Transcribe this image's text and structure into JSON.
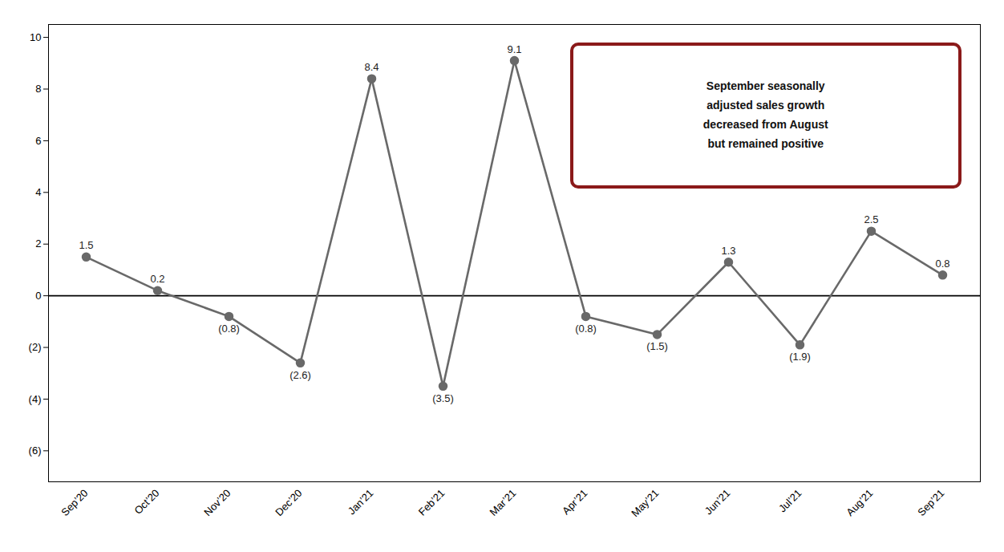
{
  "chart_data": {
    "type": "line",
    "categories": [
      "Sep’20",
      "Oct’20",
      "Nov’20",
      "Dec’20",
      "Jan’21",
      "Feb’21",
      "Mar’21",
      "Apr’21",
      "May’21",
      "Jun’21",
      "Jul’21",
      "Aug’21",
      "Sep’21"
    ],
    "values": [
      1.5,
      0.2,
      -0.8,
      -2.6,
      8.4,
      -3.5,
      9.1,
      -0.8,
      -1.5,
      1.3,
      -1.9,
      2.5,
      0.8
    ],
    "value_labels": [
      "1.5",
      "0.2",
      "(0.8)",
      "(2.6)",
      "8.4",
      "(3.5)",
      "9.1",
      "(0.8)",
      "(1.5)",
      "1.3",
      "(1.9)",
      "2.5",
      "0.8"
    ],
    "color": "#696969",
    "marker": "circle",
    "data_labels": true,
    "grid": false,
    "ylim": [
      -7.2,
      10.5
    ],
    "yticks": [
      {
        "value": -6,
        "label": "(6)"
      },
      {
        "value": -4,
        "label": "(4)"
      },
      {
        "value": -2,
        "label": "(2)"
      },
      0,
      2,
      4,
      6,
      8,
      10
    ],
    "annotation": "September seasonally\nadjusted sales growth\ndecreased from August\nbut remained positive"
  }
}
